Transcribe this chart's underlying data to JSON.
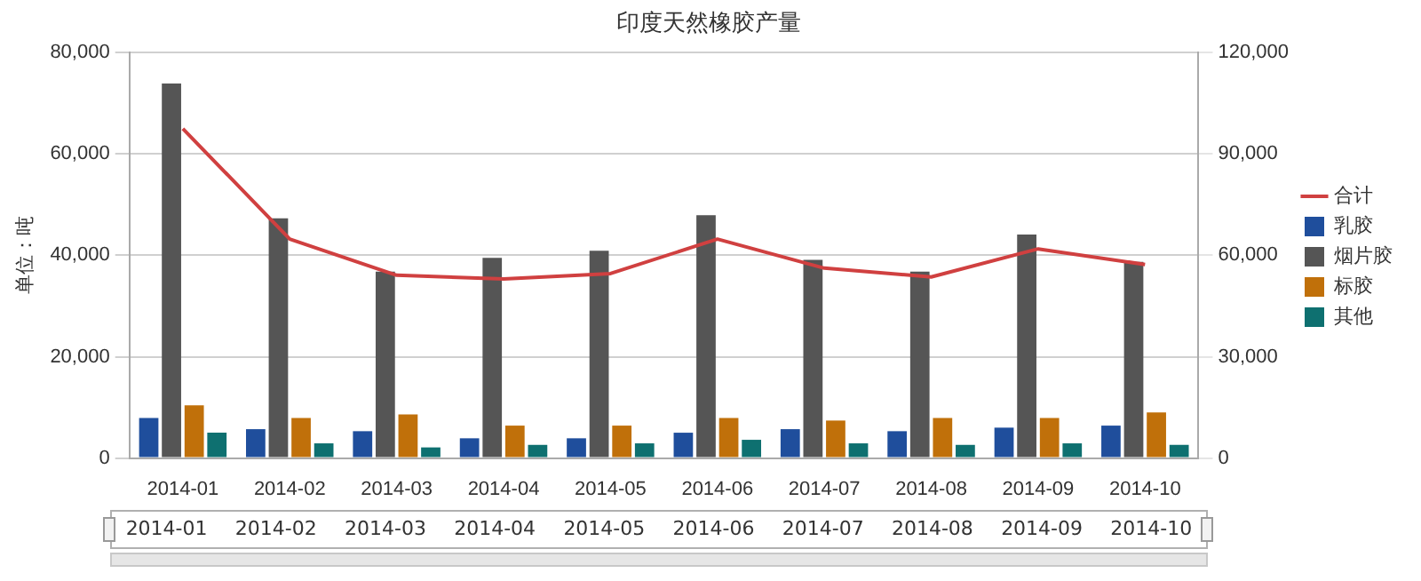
{
  "chart_data": {
    "type": "bar",
    "title": "印度天然橡胶产量",
    "ylabel": "单位：吨",
    "categories": [
      "2014-01",
      "2014-02",
      "2014-03",
      "2014-04",
      "2014-05",
      "2014-06",
      "2014-07",
      "2014-08",
      "2014-09",
      "2014-10"
    ],
    "series": [
      {
        "name": "乳胶",
        "color": "#1f4e9c",
        "values": [
          7900,
          5700,
          5300,
          3900,
          3900,
          5000,
          5700,
          5300,
          6000,
          6400
        ]
      },
      {
        "name": "烟片胶",
        "color": "#555555",
        "values": [
          73900,
          47300,
          36800,
          39500,
          40900,
          47900,
          39100,
          36800,
          44100,
          38700
        ]
      },
      {
        "name": "标胶",
        "color": "#c0700a",
        "values": [
          10400,
          7900,
          8600,
          6400,
          6400,
          7900,
          7400,
          7900,
          7900,
          9000
        ]
      },
      {
        "name": "其他",
        "color": "#0e7070",
        "values": [
          5000,
          2900,
          2100,
          2600,
          2900,
          3600,
          2900,
          2600,
          2900,
          2600
        ]
      },
      {
        "name": "合计",
        "type": "line",
        "axis": "y2",
        "color": "#d04040",
        "values": [
          97500,
          64800,
          54100,
          53000,
          54600,
          64800,
          56200,
          53600,
          61900,
          57300
        ]
      }
    ],
    "ylim": [
      0,
      80000
    ],
    "yticks": [
      {
        "value": 0,
        "label": "0"
      },
      {
        "value": 20000,
        "label": "20,000"
      },
      {
        "value": 40000,
        "label": "40,000"
      },
      {
        "value": 60000,
        "label": "60,000"
      },
      {
        "value": 80000,
        "label": "80,000"
      }
    ],
    "y2lim": [
      0,
      120000
    ],
    "y2ticks": [
      {
        "value": 0,
        "label": "0"
      },
      {
        "value": 30000,
        "label": "30,000"
      },
      {
        "value": 60000,
        "label": "60,000"
      },
      {
        "value": 90000,
        "label": "90,000"
      },
      {
        "value": 120000,
        "label": "120,000"
      }
    ],
    "grid": "y",
    "legend": "right",
    "marker": "none"
  }
}
